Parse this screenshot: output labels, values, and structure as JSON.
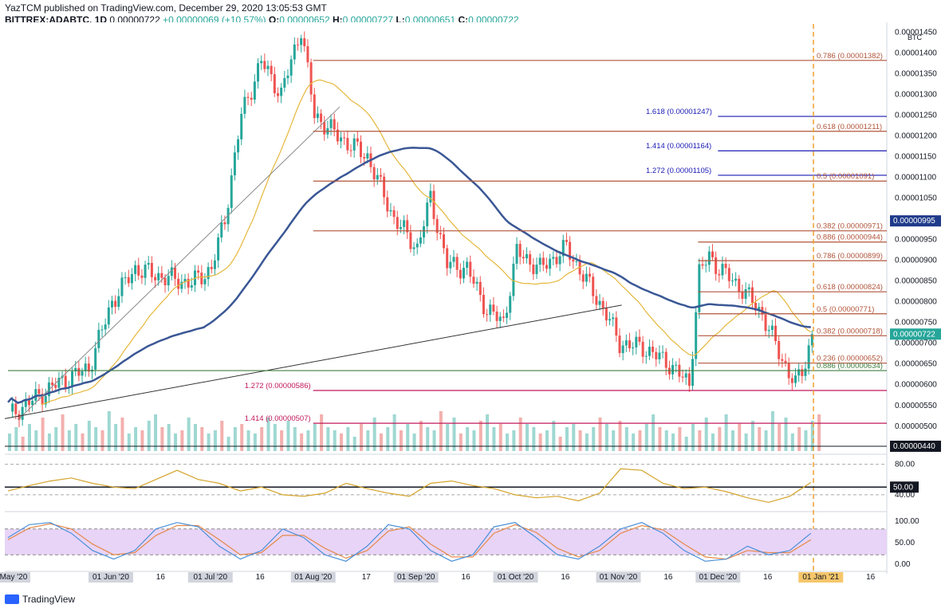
{
  "header": {
    "line1": "YazTCM published on TradingView.com, December 29, 2020 13:05:53 GMT",
    "symbol": "BITTREX:ADABTC, 1D",
    "price": "0.00000722",
    "change": "+0.00000069 (+10.57%)",
    "o_label": "O:",
    "o_val": "0.00000652",
    "h_label": "H:",
    "h_val": "0.00000727",
    "l_label": "L:",
    "l_val": "0.00000651",
    "c_label": "C:",
    "c_val": "0.00000722"
  },
  "footer": {
    "brand": "TradingView"
  },
  "colors": {
    "up": "#26a69a",
    "down": "#ef5350",
    "ma50": "#e5b73b",
    "ma200": "#3a5795",
    "fib_red": "#b2553b",
    "ext_blue": "#1a1ab5",
    "ext_pink": "#c2185b",
    "green_line": "#3f7f3f",
    "rsi": "#d4a32a",
    "stoch_k": "#4a90d9",
    "stoch_d": "#e5894a",
    "stoch_band": "#e8d4f7",
    "current_price": "#26a69a"
  },
  "chart_data": [
    {
      "type": "candlestick",
      "currency": "BTC",
      "yticks": [
        "0.00001450",
        "0.00001400",
        "0.00001350",
        "0.00001300",
        "0.00001250",
        "0.00001200",
        "0.00001150",
        "0.00001100",
        "0.00001050",
        "0.00001000",
        "0.00000950",
        "0.00000900",
        "0.00000850",
        "0.00000800",
        "0.00000750",
        "0.00000700",
        "0.00000650",
        "0.00000600",
        "0.00000550",
        "0.00000500"
      ],
      "ylim": [
        4.4e-06,
        1.47e-05
      ],
      "xticks": [
        "01 May '20",
        "01 Jun '20",
        "16",
        "01 Jul '20",
        "16",
        "01 Aug '20",
        "17",
        "01 Sep '20",
        "16",
        "01 Oct '20",
        "16",
        "01 Nov '20",
        "16",
        "01 Dec '20",
        "16",
        "01 Jan '21",
        "16"
      ],
      "price_series": [
        {
          "date": "May 1",
          "close": 5.25e-06
        },
        {
          "date": "May 15",
          "close": 6e-06
        },
        {
          "date": "May 25",
          "close": 6.4e-06
        },
        {
          "date": "Jun 1",
          "close": 8e-06
        },
        {
          "date": "Jun 8",
          "close": 8.8e-06
        },
        {
          "date": "Jun 16",
          "close": 8.6e-06
        },
        {
          "date": "Jun 25",
          "close": 8.45e-06
        },
        {
          "date": "Jul 1",
          "close": 8.8e-06
        },
        {
          "date": "Jul 5",
          "close": 1e-05
        },
        {
          "date": "Jul 10",
          "close": 1.25e-05
        },
        {
          "date": "Jul 16",
          "close": 1.38e-05
        },
        {
          "date": "Jul 22",
          "close": 1.3e-05
        },
        {
          "date": "Jul 28",
          "close": 1.46e-05
        },
        {
          "date": "Aug 1",
          "close": 1.25e-05
        },
        {
          "date": "Aug 8",
          "close": 1.2e-05
        },
        {
          "date": "Aug 17",
          "close": 1.15e-05
        },
        {
          "date": "Aug 25",
          "close": 1e-05
        },
        {
          "date": "Sep 1",
          "close": 9.3e-06
        },
        {
          "date": "Sep 5",
          "close": 1.05e-05
        },
        {
          "date": "Sep 10",
          "close": 8.9e-06
        },
        {
          "date": "Sep 16",
          "close": 8.8e-06
        },
        {
          "date": "Sep 22",
          "close": 7.8e-06
        },
        {
          "date": "Sep 27",
          "close": 7.5e-06
        },
        {
          "date": "Oct 1",
          "close": 9.2e-06
        },
        {
          "date": "Oct 8",
          "close": 8.8e-06
        },
        {
          "date": "Oct 16",
          "close": 9.3e-06
        },
        {
          "date": "Oct 22",
          "close": 8.5e-06
        },
        {
          "date": "Oct 28",
          "close": 7.7e-06
        },
        {
          "date": "Nov 1",
          "close": 7e-06
        },
        {
          "date": "Nov 8",
          "close": 6.9e-06
        },
        {
          "date": "Nov 16",
          "close": 6.5e-06
        },
        {
          "date": "Nov 22",
          "close": 6e-06
        },
        {
          "date": "Nov 25",
          "close": 8.7e-06
        },
        {
          "date": "Nov 28",
          "close": 9.1e-06
        },
        {
          "date": "Dec 1",
          "close": 8.8e-06
        },
        {
          "date": "Dec 8",
          "close": 8.3e-06
        },
        {
          "date": "Dec 14",
          "close": 7.7e-06
        },
        {
          "date": "Dec 20",
          "close": 6.6e-06
        },
        {
          "date": "Dec 24",
          "close": 6e-06
        },
        {
          "date": "Dec 27",
          "close": 6.53e-06
        },
        {
          "date": "Dec 29",
          "close": 7.22e-06
        }
      ],
      "moving_averages": [
        {
          "period": 50,
          "color": "#e5b73b"
        },
        {
          "period": 200,
          "color": "#3a5795"
        }
      ],
      "fib_levels": [
        {
          "label": "0.786 (0.00001382)",
          "value": 1.382e-05,
          "color": "#b2553b",
          "start": "Aug 1"
        },
        {
          "label": "1.618 (0.00001247)",
          "value": 1.247e-05,
          "color": "#1a1ab5",
          "start": "Dec 1"
        },
        {
          "label": "0.618 (0.00001211)",
          "value": 1.211e-05,
          "color": "#b2553b",
          "start": "Aug 1"
        },
        {
          "label": "1.414 (0.00001164)",
          "value": 1.164e-05,
          "color": "#1a1ab5",
          "start": "Dec 1"
        },
        {
          "label": "1.272 (0.00001105)",
          "value": 1.105e-05,
          "color": "#1a1ab5",
          "start": "Dec 1"
        },
        {
          "label": "0.5 (0.00001091)",
          "value": 1.091e-05,
          "color": "#b2553b",
          "start": "Aug 1"
        },
        {
          "label": "0.382 (0.00000971)",
          "value": 9.71e-06,
          "color": "#b2553b",
          "start": "Aug 1"
        },
        {
          "label": "0.886 (0.00000944)",
          "value": 9.44e-06,
          "color": "#b2553b",
          "start": "Nov 25"
        },
        {
          "label": "0.786 (0.00000899)",
          "value": 8.99e-06,
          "color": "#b2553b",
          "start": "Nov 25"
        },
        {
          "label": "0.618 (0.00000824)",
          "value": 8.24e-06,
          "color": "#b2553b",
          "start": "Nov 25"
        },
        {
          "label": "0.5 (0.00000771)",
          "value": 7.71e-06,
          "color": "#b2553b",
          "start": "Nov 25"
        },
        {
          "label": "0.382 (0.00000718)",
          "value": 7.18e-06,
          "color": "#b2553b",
          "start": "Nov 25"
        },
        {
          "label": "0.236 (0.00000652)",
          "value": 6.52e-06,
          "color": "#b2553b",
          "start": "Nov 25"
        },
        {
          "label": "0.886 (0.00000634)",
          "value": 6.34e-06,
          "color": "#3f7f3f",
          "start": "May 1"
        },
        {
          "label": "1.272 (0.00000586)",
          "value": 5.86e-06,
          "color": "#c2185b",
          "start": "Aug 1"
        },
        {
          "label": "1.414 (0.00000507)",
          "value": 5.07e-06,
          "color": "#c2185b",
          "start": "Aug 1"
        }
      ],
      "current_price_label": "0.00000722",
      "resistance_label": "0.00000995",
      "volume_floor_label": "0.00000440"
    },
    {
      "type": "line",
      "name": "RSI",
      "yticks": [
        "80.00",
        "40.00"
      ],
      "highlight_label": "50.00",
      "values": [
        45,
        52,
        58,
        62,
        55,
        50,
        48,
        60,
        72,
        60,
        55,
        45,
        50,
        40,
        38,
        42,
        55,
        48,
        42,
        38,
        55,
        58,
        52,
        48,
        40,
        36,
        38,
        32,
        42,
        74,
        72,
        55,
        48,
        50,
        44,
        36,
        30,
        38,
        56
      ]
    },
    {
      "type": "line",
      "name": "Stoch RSI",
      "yticks": [
        "100.00",
        "50.00",
        "0.00"
      ],
      "k_values": [
        60,
        90,
        95,
        70,
        30,
        10,
        30,
        80,
        95,
        85,
        40,
        10,
        30,
        80,
        60,
        20,
        5,
        40,
        90,
        80,
        30,
        5,
        20,
        85,
        95,
        60,
        20,
        10,
        40,
        80,
        95,
        70,
        30,
        5,
        10,
        40,
        20,
        30,
        70
      ],
      "d_values": [
        55,
        82,
        92,
        80,
        45,
        20,
        25,
        65,
        88,
        88,
        55,
        20,
        25,
        65,
        65,
        35,
        12,
        30,
        75,
        85,
        45,
        15,
        15,
        70,
        90,
        72,
        35,
        15,
        30,
        70,
        88,
        78,
        45,
        15,
        10,
        30,
        25,
        25,
        55
      ]
    }
  ]
}
